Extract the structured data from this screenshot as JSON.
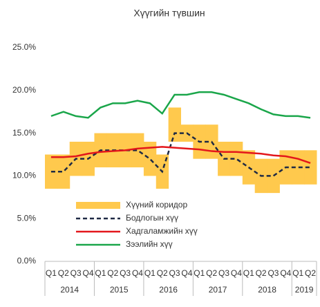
{
  "chart_data": {
    "type": "line",
    "title": "Хүүгийн түвшин",
    "categories": [
      "Q1",
      "Q2",
      "Q3",
      "Q4",
      "Q1",
      "Q2",
      "Q3",
      "Q4",
      "Q1",
      "Q2",
      "Q3",
      "Q4",
      "Q1",
      "Q2",
      "Q3",
      "Q4",
      "Q1",
      "Q2",
      "Q3",
      "Q4",
      "Q1",
      "Q2"
    ],
    "years": [
      "2014",
      "2015",
      "2016",
      "2017",
      "2018",
      "2019"
    ],
    "ylim": [
      0,
      25
    ],
    "yticks": [
      {
        "value": 0,
        "label": "0.0%"
      },
      {
        "value": 5,
        "label": "5.0%"
      },
      {
        "value": 10,
        "label": "10.0%"
      },
      {
        "value": 15,
        "label": "15.0%"
      },
      {
        "value": 20,
        "label": "20.0%"
      },
      {
        "value": 25,
        "label": "25.0%"
      }
    ],
    "grid": false,
    "series": [
      {
        "name": "Хүүний коридор",
        "kind": "band",
        "color": "#ffc94d",
        "lower": [
          8.5,
          8.5,
          10,
          10,
          11,
          11,
          11,
          11,
          10,
          8.5,
          14,
          14,
          12,
          12,
          10,
          10,
          9,
          8,
          8,
          9,
          9,
          9
        ],
        "upper": [
          12.5,
          12.5,
          14,
          14,
          15,
          15,
          15,
          15,
          14,
          12.5,
          18,
          16,
          16,
          16,
          14,
          14,
          13,
          12,
          12,
          13,
          13,
          13
        ]
      },
      {
        "name": "Бодлогын хүү",
        "kind": "dashed",
        "color": "#1f2a44",
        "values": [
          10.5,
          10.5,
          12,
          12,
          13,
          13,
          13,
          13,
          12,
          10.5,
          15,
          15,
          14,
          14,
          12,
          12,
          11,
          10,
          10,
          11,
          11,
          11
        ]
      },
      {
        "name": "Хадгаламжийн хүү",
        "kind": "solid",
        "color": "#e3161b",
        "values": [
          12.2,
          12.2,
          12.3,
          12.6,
          12.8,
          12.9,
          13.0,
          13.2,
          13.3,
          13.4,
          13.3,
          13.2,
          13.1,
          12.9,
          12.8,
          12.8,
          12.7,
          12.6,
          12.4,
          12.3,
          12.0,
          11.5
        ]
      },
      {
        "name": "Зээлийн хүү",
        "kind": "solid",
        "color": "#1aa64a",
        "values": [
          17.0,
          17.5,
          17.0,
          16.8,
          18.0,
          18.5,
          18.5,
          18.8,
          18.5,
          17.3,
          19.5,
          19.5,
          19.8,
          19.8,
          19.5,
          19.0,
          18.5,
          17.8,
          17.2,
          17.0,
          17.0,
          16.8
        ]
      }
    ]
  }
}
